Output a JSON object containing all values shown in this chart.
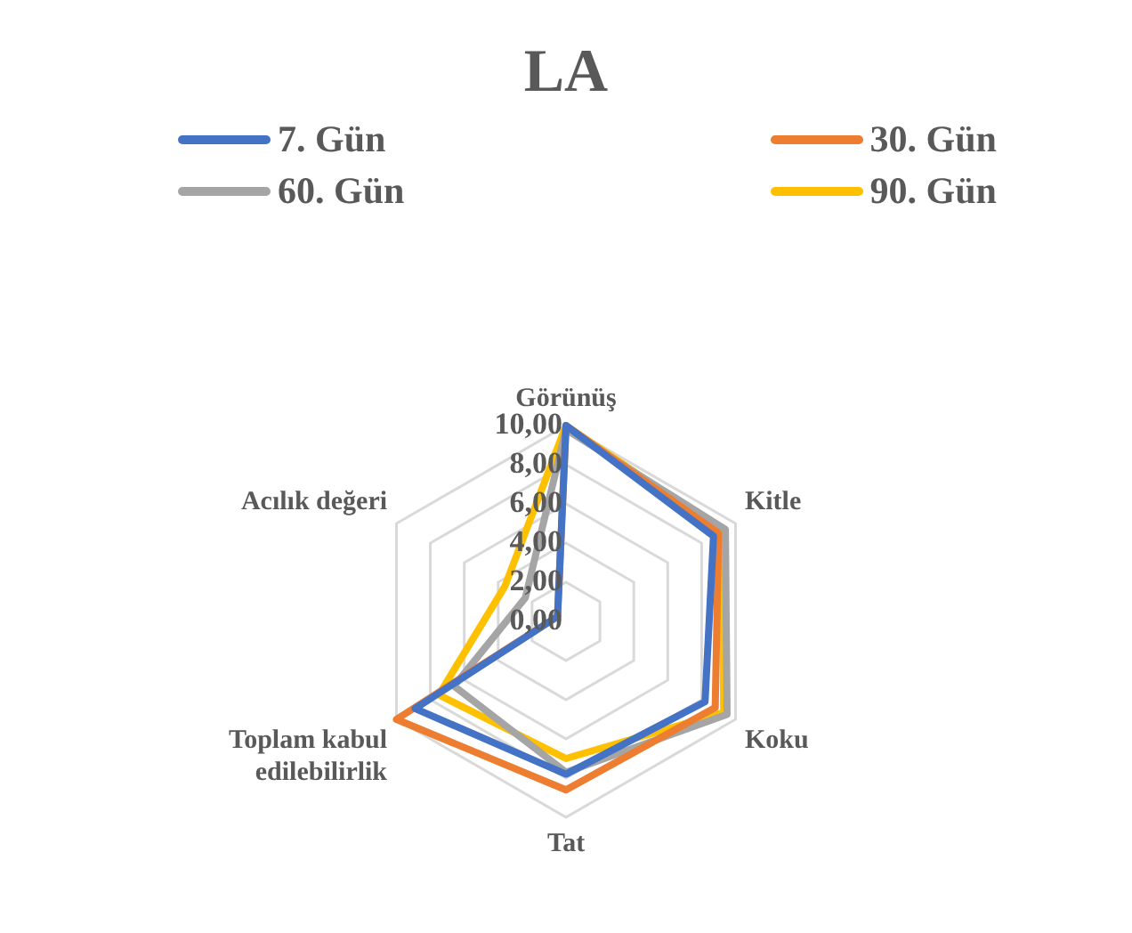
{
  "chart_data": {
    "type": "radar",
    "title": "LA",
    "categories": [
      "Görünüş",
      "Kitle",
      "Koku",
      "Tat",
      "Toplam kabul edilebilirlik",
      "Acılık değeri"
    ],
    "series": [
      {
        "name": "7. Gün",
        "color": "#4472c4",
        "values": [
          10,
          8.7,
          8.2,
          7.8,
          8.9,
          0.5
        ]
      },
      {
        "name": "30. Gün",
        "color": "#ed7d31",
        "values": [
          10,
          9.0,
          8.8,
          8.6,
          10,
          0.5
        ]
      },
      {
        "name": "60. Gün",
        "color": "#a5a5a5",
        "values": [
          9.8,
          9.4,
          9.5,
          7.7,
          6.6,
          2.4
        ]
      },
      {
        "name": "90. Gün",
        "color": "#ffc000",
        "values": [
          10,
          9.2,
          9.3,
          7.0,
          7.5,
          3.6
        ]
      }
    ],
    "ylim": [
      0,
      10
    ],
    "yticks": [
      {
        "value": 0,
        "label": "0,00"
      },
      {
        "value": 2,
        "label": "2,00"
      },
      {
        "value": 4,
        "label": "4,00"
      },
      {
        "value": 6,
        "label": "6,00"
      },
      {
        "value": 8,
        "label": "8,00"
      },
      {
        "value": 10,
        "label": "10,00"
      }
    ],
    "grid": true,
    "legend": "top",
    "marker": "none"
  }
}
